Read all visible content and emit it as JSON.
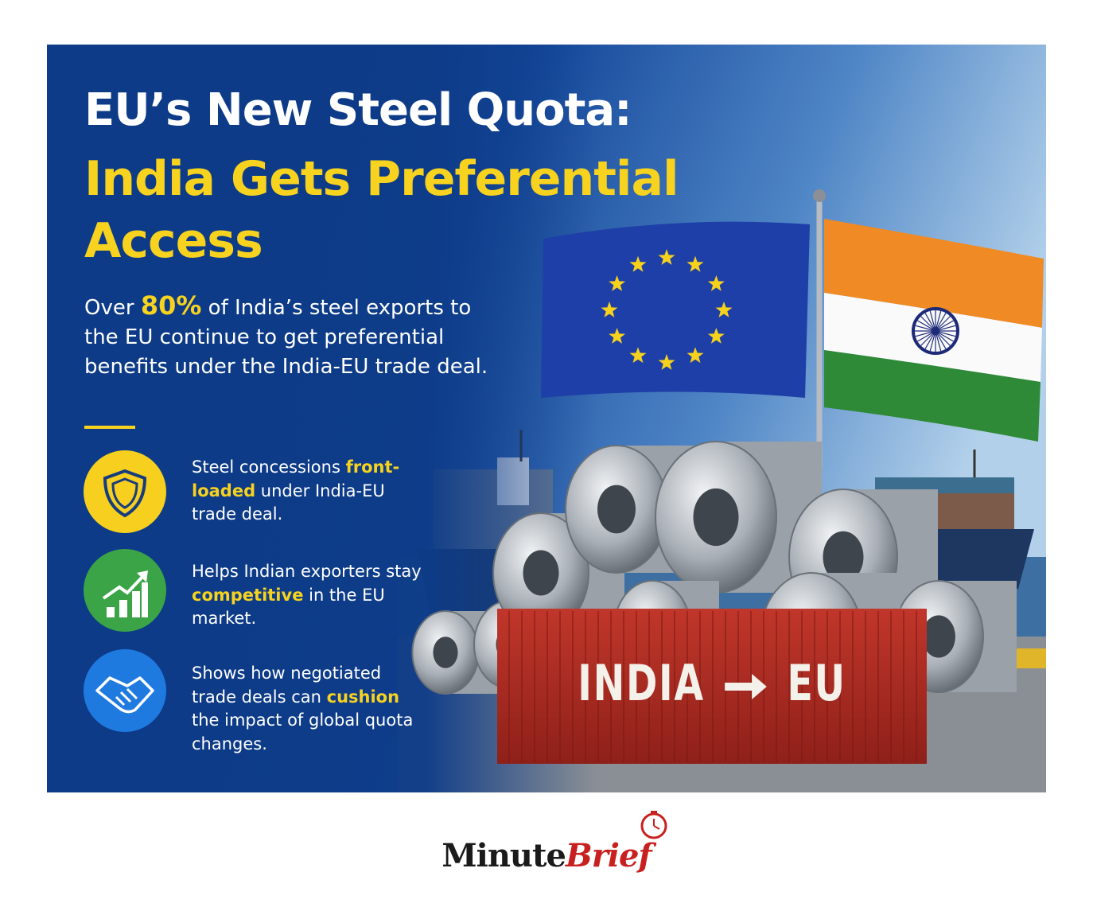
{
  "header": {
    "title_line": "EU’s New Steel Quota:",
    "title_highlight": "India Gets Preferential Access"
  },
  "summary": {
    "before": "Over ",
    "highlight": "80%",
    "after": " of India’s steel exports to the EU continue to get preferential benefits under the India-EU trade deal."
  },
  "points": [
    {
      "before": "Steel concessions ",
      "highlight": "front-loaded",
      "after": " under India-EU trade deal."
    },
    {
      "before": "Helps Indian exporters stay ",
      "highlight": "competitive",
      "after": " in the EU market."
    },
    {
      "before": "Shows how negotiated trade deals can ",
      "highlight": "cushion",
      "after": " the impact of global quota changes."
    }
  ],
  "container_label": {
    "from": "INDIA",
    "to": "EU"
  },
  "logo": {
    "first": "Minute",
    "second": "Brief"
  }
}
